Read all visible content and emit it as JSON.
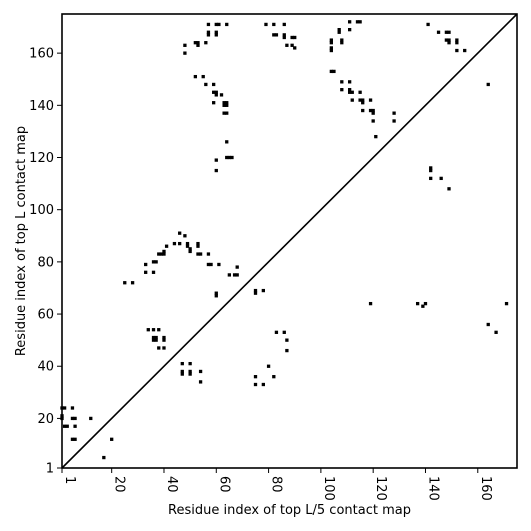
{
  "chart_data": {
    "type": "scatter",
    "xlabel": "Residue index of top L/5 contact map",
    "ylabel": "Residue index of top L contact map",
    "xlim": [
      1,
      175
    ],
    "ylim": [
      1,
      175
    ],
    "x_ticks": [
      1,
      20,
      40,
      60,
      80,
      100,
      120,
      140,
      160
    ],
    "y_ticks": [
      1,
      20,
      40,
      60,
      80,
      100,
      120,
      140,
      160
    ],
    "tick_labels": [
      "1",
      "20",
      "40",
      "60",
      "80",
      "100",
      "120",
      "140",
      "160"
    ],
    "diagonal": true,
    "marker": "square",
    "color": "#000000",
    "lower_points": [
      [
        1,
        24
      ],
      [
        2,
        24
      ],
      [
        1,
        21
      ],
      [
        1,
        20
      ],
      [
        5,
        24
      ],
      [
        2,
        17
      ],
      [
        3,
        17
      ],
      [
        5,
        20
      ],
      [
        6,
        20
      ],
      [
        6,
        17
      ],
      [
        5,
        12
      ],
      [
        6,
        12
      ],
      [
        12,
        20
      ],
      [
        17,
        5
      ],
      [
        20,
        12
      ],
      [
        25,
        72
      ],
      [
        28,
        72
      ],
      [
        33,
        79
      ],
      [
        33,
        76
      ],
      [
        36,
        80
      ],
      [
        37,
        80
      ],
      [
        36,
        76
      ],
      [
        38,
        83
      ],
      [
        39,
        83
      ],
      [
        40,
        84
      ],
      [
        40,
        83
      ],
      [
        41,
        86
      ],
      [
        44,
        87
      ],
      [
        46,
        87
      ],
      [
        46,
        91
      ],
      [
        48,
        90
      ],
      [
        49,
        87
      ],
      [
        49,
        86
      ],
      [
        50,
        84
      ],
      [
        50,
        85
      ],
      [
        53,
        87
      ],
      [
        53,
        86
      ],
      [
        53,
        83
      ],
      [
        54,
        83
      ],
      [
        57,
        83
      ],
      [
        57,
        79
      ],
      [
        58,
        79
      ],
      [
        61,
        79
      ],
      [
        60,
        68
      ],
      [
        60,
        67
      ],
      [
        34,
        54
      ],
      [
        36,
        54
      ],
      [
        38,
        54
      ],
      [
        36,
        51
      ],
      [
        37,
        51
      ],
      [
        37,
        50
      ],
      [
        36,
        50
      ],
      [
        38,
        47
      ],
      [
        40,
        47
      ],
      [
        40,
        50
      ],
      [
        40,
        51
      ],
      [
        47,
        41
      ],
      [
        50,
        41
      ],
      [
        47,
        38
      ],
      [
        47,
        37
      ],
      [
        50,
        38
      ],
      [
        50,
        37
      ],
      [
        54,
        38
      ],
      [
        54,
        34
      ],
      [
        65,
        75
      ],
      [
        67,
        75
      ],
      [
        68,
        75
      ],
      [
        68,
        78
      ],
      [
        75,
        68
      ],
      [
        75,
        69
      ],
      [
        78,
        69
      ],
      [
        75,
        36
      ],
      [
        75,
        33
      ],
      [
        78,
        33
      ],
      [
        80,
        40
      ],
      [
        82,
        36
      ],
      [
        83,
        53
      ],
      [
        86,
        53
      ],
      [
        87,
        50
      ],
      [
        87,
        46
      ],
      [
        119,
        64
      ],
      [
        137,
        64
      ],
      [
        139,
        63
      ],
      [
        140,
        64
      ],
      [
        164,
        56
      ],
      [
        167,
        53
      ],
      [
        171,
        64
      ]
    ],
    "upper_points": [
      [
        48,
        163
      ],
      [
        48,
        160
      ],
      [
        52,
        164
      ],
      [
        53,
        164
      ],
      [
        53,
        163
      ],
      [
        56,
        164
      ],
      [
        57,
        167
      ],
      [
        57,
        168
      ],
      [
        57,
        171
      ],
      [
        60,
        171
      ],
      [
        61,
        171
      ],
      [
        60,
        168
      ],
      [
        60,
        167
      ],
      [
        64,
        171
      ],
      [
        52,
        151
      ],
      [
        55,
        151
      ],
      [
        56,
        148
      ],
      [
        59,
        148
      ],
      [
        59,
        145
      ],
      [
        60,
        145
      ],
      [
        60,
        144
      ],
      [
        59,
        141
      ],
      [
        62,
        144
      ],
      [
        63,
        141
      ],
      [
        64,
        141
      ],
      [
        63,
        140
      ],
      [
        64,
        140
      ],
      [
        63,
        137
      ],
      [
        64,
        137
      ],
      [
        64,
        126
      ],
      [
        64,
        120
      ],
      [
        65,
        120
      ],
      [
        66,
        120
      ],
      [
        60,
        119
      ],
      [
        60,
        115
      ],
      [
        79,
        171
      ],
      [
        82,
        171
      ],
      [
        82,
        167
      ],
      [
        83,
        167
      ],
      [
        86,
        171
      ],
      [
        86,
        167
      ],
      [
        86,
        166
      ],
      [
        87,
        163
      ],
      [
        89,
        163
      ],
      [
        89,
        166
      ],
      [
        90,
        166
      ],
      [
        90,
        162
      ],
      [
        104,
        165
      ],
      [
        104,
        164
      ],
      [
        104,
        162
      ],
      [
        104,
        161
      ],
      [
        107,
        169
      ],
      [
        107,
        168
      ],
      [
        108,
        165
      ],
      [
        108,
        164
      ],
      [
        111,
        172
      ],
      [
        111,
        169
      ],
      [
        114,
        172
      ],
      [
        115,
        172
      ],
      [
        104,
        153
      ],
      [
        105,
        153
      ],
      [
        108,
        149
      ],
      [
        108,
        146
      ],
      [
        111,
        149
      ],
      [
        111,
        146
      ],
      [
        111,
        145
      ],
      [
        112,
        145
      ],
      [
        112,
        142
      ],
      [
        115,
        145
      ],
      [
        115,
        142
      ],
      [
        116,
        142
      ],
      [
        116,
        141
      ],
      [
        116,
        138
      ],
      [
        119,
        142
      ],
      [
        119,
        138
      ],
      [
        120,
        138
      ],
      [
        120,
        137
      ],
      [
        120,
        134
      ],
      [
        121,
        128
      ],
      [
        128,
        137
      ],
      [
        128,
        134
      ],
      [
        141,
        171
      ],
      [
        145,
        168
      ],
      [
        148,
        168
      ],
      [
        149,
        168
      ],
      [
        148,
        165
      ],
      [
        149,
        165
      ],
      [
        149,
        164
      ],
      [
        152,
        165
      ],
      [
        152,
        164
      ],
      [
        152,
        161
      ],
      [
        155,
        161
      ],
      [
        164,
        148
      ],
      [
        142,
        116
      ],
      [
        142,
        115
      ],
      [
        142,
        112
      ],
      [
        146,
        112
      ],
      [
        149,
        108
      ]
    ]
  }
}
